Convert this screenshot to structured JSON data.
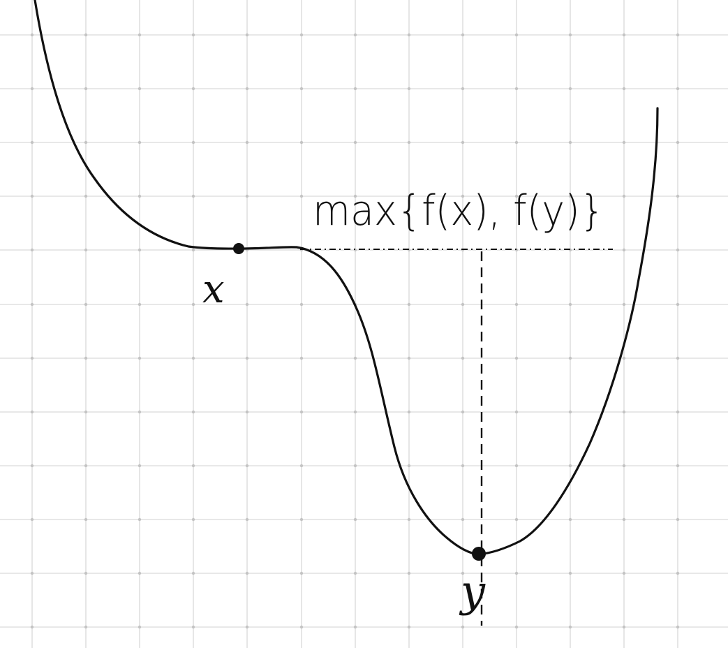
{
  "diagram": {
    "points": [
      {
        "id": "x",
        "label": "x"
      },
      {
        "id": "y",
        "label": "y"
      }
    ],
    "annotation": "max{f(x), f(y)}",
    "colors": {
      "background": "#ffffff",
      "grid": "#d9d9d9",
      "ink": "#111111"
    }
  }
}
